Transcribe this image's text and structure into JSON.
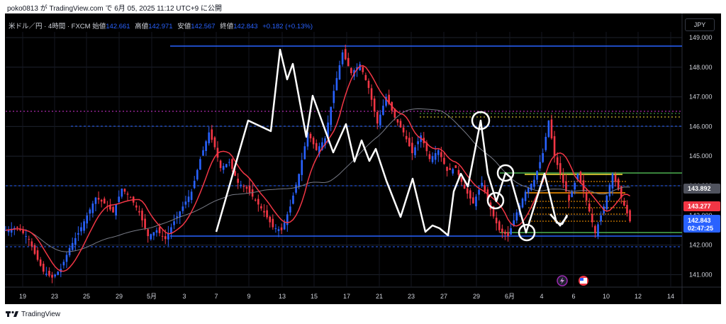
{
  "publish_line": "poko0813 が TradingView.com で 6月 05, 2025 11:12 UTC+9 に公開",
  "legend": {
    "symbol": "米ドル／円 · 4時間 · FXCM",
    "open_label": "始値",
    "open": "142.661",
    "high_label": "高値",
    "high": "142.971",
    "low_label": "安値",
    "low": "142.567",
    "close_label": "終値",
    "close": "142.843",
    "change": "+0.182 (+0.13%)"
  },
  "currency": "JPY",
  "footer_brand": "TradingView",
  "colors": {
    "background": "#000000",
    "up_candle": "#2962ff",
    "down_candle": "#f23645",
    "ma_fast": "#f23645",
    "ma_slow": "#787b86",
    "pattern_line": "#ffffff",
    "support_line": "#2962ff",
    "resistance_line": "#2962ff",
    "dotted_blue": "#2962ff",
    "dotted_magenta": "#d633d6",
    "green_line": "#4caf50",
    "orange_line": "#ff9800",
    "yellow_line": "#ffeb3b",
    "badge_ma_slow": "#50535e",
    "badge_ma_fast": "#f23645",
    "badge_price": "#2962ff"
  },
  "chart_data": {
    "type": "candlestick",
    "title": "米ドル／円 · 4時間 · FXCM",
    "x_ticks": [
      "19",
      "23",
      "25",
      "29",
      "5月",
      "3",
      "7",
      "9",
      "13",
      "15",
      "17",
      "21",
      "23",
      "27",
      "29",
      "6月",
      "4",
      "6",
      "10",
      "12",
      "14"
    ],
    "y_ticks": [
      "149.000",
      "148.000",
      "147.000",
      "146.000",
      "145.000",
      "144.000",
      "143.000",
      "142.000",
      "141.000"
    ],
    "ylim": [
      140.6,
      149.2
    ],
    "price_labels": {
      "ma_slow": "143.892",
      "ma_fast": "143.277",
      "last_price": "142.843",
      "countdown": "02:47:25"
    },
    "close_path_points": [
      {
        "x": 0,
        "y": 142.5
      },
      {
        "x": 4,
        "y": 142.6
      },
      {
        "x": 8,
        "y": 142.2
      },
      {
        "x": 10,
        "y": 141.7
      },
      {
        "x": 13,
        "y": 141.1
      },
      {
        "x": 16,
        "y": 140.9
      },
      {
        "x": 19,
        "y": 141.2
      },
      {
        "x": 22,
        "y": 141.9
      },
      {
        "x": 25,
        "y": 142.4
      },
      {
        "x": 28,
        "y": 143.0
      },
      {
        "x": 31,
        "y": 143.6
      },
      {
        "x": 34,
        "y": 143.4
      },
      {
        "x": 37,
        "y": 143.1
      },
      {
        "x": 40,
        "y": 143.9
      },
      {
        "x": 43,
        "y": 143.6
      },
      {
        "x": 46,
        "y": 143.1
      },
      {
        "x": 49,
        "y": 142.3
      },
      {
        "x": 52,
        "y": 142.5
      },
      {
        "x": 55,
        "y": 142.2
      },
      {
        "x": 58,
        "y": 142.8
      },
      {
        "x": 61,
        "y": 143.3
      },
      {
        "x": 64,
        "y": 143.8
      },
      {
        "x": 67,
        "y": 144.9
      },
      {
        "x": 70,
        "y": 145.8
      },
      {
        "x": 72,
        "y": 145.3
      },
      {
        "x": 74,
        "y": 144.6
      },
      {
        "x": 77,
        "y": 144.8
      },
      {
        "x": 80,
        "y": 144.1
      },
      {
        "x": 83,
        "y": 143.9
      },
      {
        "x": 86,
        "y": 143.5
      },
      {
        "x": 89,
        "y": 143.1
      },
      {
        "x": 92,
        "y": 142.6
      },
      {
        "x": 95,
        "y": 142.5
      },
      {
        "x": 98,
        "y": 143.3
      },
      {
        "x": 101,
        "y": 144.4
      },
      {
        "x": 104,
        "y": 145.8
      },
      {
        "x": 107,
        "y": 145.2
      },
      {
        "x": 110,
        "y": 145.6
      },
      {
        "x": 113,
        "y": 147.2
      },
      {
        "x": 116,
        "y": 148.5
      },
      {
        "x": 119,
        "y": 147.8
      },
      {
        "x": 122,
        "y": 148.1
      },
      {
        "x": 125,
        "y": 147.3
      },
      {
        "x": 128,
        "y": 146.1
      },
      {
        "x": 131,
        "y": 147.0
      },
      {
        "x": 134,
        "y": 146.3
      },
      {
        "x": 137,
        "y": 145.8
      },
      {
        "x": 140,
        "y": 145.1
      },
      {
        "x": 143,
        "y": 145.7
      },
      {
        "x": 146,
        "y": 144.9
      },
      {
        "x": 149,
        "y": 145.2
      },
      {
        "x": 152,
        "y": 144.5
      },
      {
        "x": 155,
        "y": 144.6
      },
      {
        "x": 158,
        "y": 143.9
      },
      {
        "x": 161,
        "y": 143.4
      },
      {
        "x": 164,
        "y": 144.1
      },
      {
        "x": 167,
        "y": 143.2
      },
      {
        "x": 170,
        "y": 142.5
      },
      {
        "x": 173,
        "y": 142.3
      },
      {
        "x": 176,
        "y": 143.1
      },
      {
        "x": 179,
        "y": 143.8
      },
      {
        "x": 182,
        "y": 144.2
      },
      {
        "x": 185,
        "y": 145.1
      },
      {
        "x": 187,
        "y": 146.2
      },
      {
        "x": 189,
        "y": 145.0
      },
      {
        "x": 192,
        "y": 144.1
      },
      {
        "x": 194,
        "y": 143.5
      },
      {
        "x": 197,
        "y": 144.4
      },
      {
        "x": 200,
        "y": 143.5
      },
      {
        "x": 203,
        "y": 142.4
      },
      {
        "x": 206,
        "y": 143.3
      },
      {
        "x": 209,
        "y": 144.4
      },
      {
        "x": 212,
        "y": 143.6
      },
      {
        "x": 215,
        "y": 142.8
      }
    ]
  }
}
